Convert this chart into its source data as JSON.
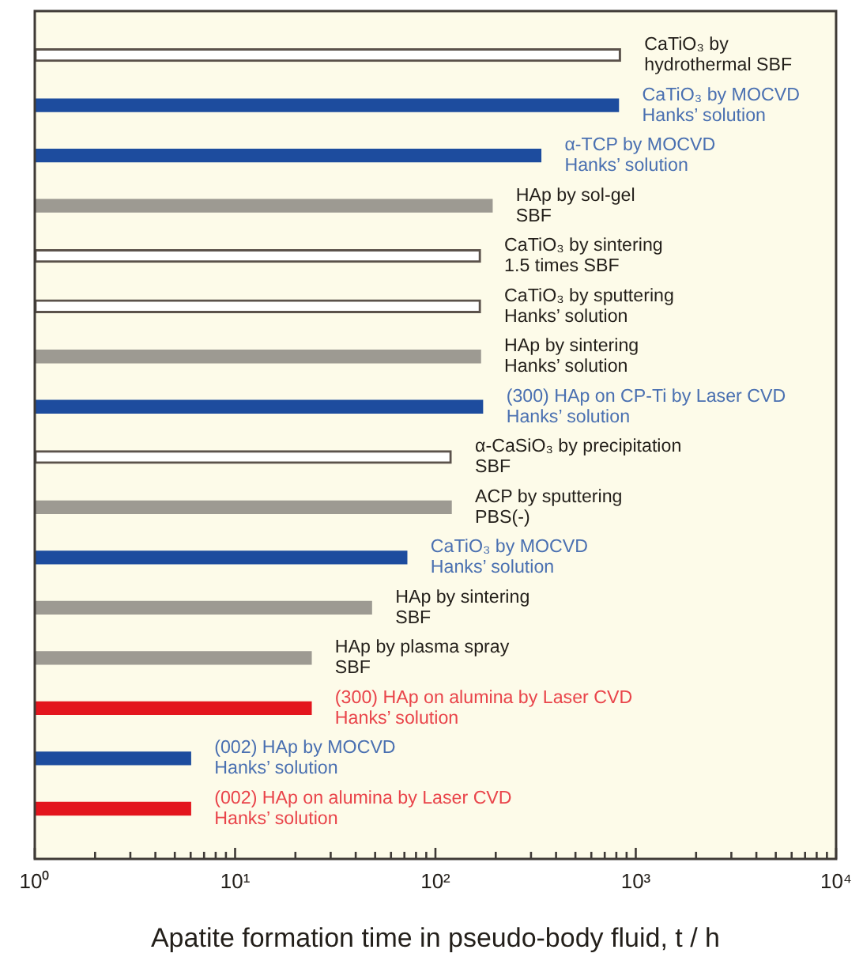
{
  "chart_data": {
    "type": "bar",
    "orientation": "horizontal",
    "xlabel": "Apatite formation time in pseudo-body fluid, t / h",
    "categories": [
      "CaTiO₃ by\nhydrothermal SBF",
      "CaTiO₃ by MOCVD\nHanks’ solution",
      "α-TCP by MOCVD\nHanks’ solution",
      "HAp by sol-gel\nSBF",
      "CaTiO₃ by sintering\n1.5 times SBF",
      "CaTiO₃ by sputtering\nHanks’ solution",
      "HAp by sintering\nHanks’ solution",
      "(300) HAp on CP-Ti by Laser CVD\nHanks’ solution",
      "α-CaSiO₃ by precipitation\nSBF",
      "ACP by sputtering\nPBS(-)",
      "CaTiO₃ by MOCVD\nHanks’ solution",
      "HAp by sintering\nSBF",
      "HAp by plasma spray\nSBF",
      "(300) HAp on alumina by Laser CVD\nHanks’ solution",
      "(002) HAp by MOCVD\nHanks’ solution",
      "(002) HAp on alumina by Laser CVD\nHanks’ solution"
    ],
    "values": [
      840,
      820,
      336,
      192,
      168,
      168,
      168,
      172,
      120,
      120,
      72,
      48,
      24,
      24,
      6,
      6
    ],
    "colors": [
      "#ffffff",
      "#1d4c9e",
      "#1d4c9e",
      "#9d9a92",
      "#ffffff",
      "#ffffff",
      "#9d9a92",
      "#1d4c9e",
      "#ffffff",
      "#9d9a92",
      "#1d4c9e",
      "#9d9a92",
      "#9d9a92",
      "#e3151d",
      "#1d4c9e",
      "#e3151d"
    ],
    "log": "x",
    "xlim": [
      1,
      10000
    ],
    "xticks": [
      {
        "value": 1,
        "label": "10⁰"
      },
      {
        "value": 2,
        "label": null
      },
      {
        "value": 3,
        "label": null
      },
      {
        "value": 4,
        "label": null
      },
      {
        "value": 5,
        "label": null
      },
      {
        "value": 6,
        "label": null
      },
      {
        "value": 7,
        "label": null
      },
      {
        "value": 8,
        "label": null
      },
      {
        "value": 9,
        "label": null
      },
      {
        "value": 10,
        "label": "10¹"
      },
      {
        "value": 20,
        "label": null
      },
      {
        "value": 30,
        "label": null
      },
      {
        "value": 40,
        "label": null
      },
      {
        "value": 50,
        "label": null
      },
      {
        "value": 60,
        "label": null
      },
      {
        "value": 70,
        "label": null
      },
      {
        "value": 80,
        "label": null
      },
      {
        "value": 90,
        "label": null
      },
      {
        "value": 100,
        "label": "10²"
      },
      {
        "value": 200,
        "label": null
      },
      {
        "value": 300,
        "label": null
      },
      {
        "value": 400,
        "label": null
      },
      {
        "value": 500,
        "label": null
      },
      {
        "value": 600,
        "label": null
      },
      {
        "value": 700,
        "label": null
      },
      {
        "value": 800,
        "label": null
      },
      {
        "value": 900,
        "label": null
      },
      {
        "value": 1000,
        "label": "10³"
      },
      {
        "value": 2000,
        "label": null
      },
      {
        "value": 3000,
        "label": null
      },
      {
        "value": 4000,
        "label": null
      },
      {
        "value": 5000,
        "label": null
      },
      {
        "value": 6000,
        "label": null
      },
      {
        "value": 7000,
        "label": null
      },
      {
        "value": 8000,
        "label": null
      },
      {
        "value": 9000,
        "label": null
      },
      {
        "value": 10000,
        "label": "10⁴"
      }
    ]
  }
}
